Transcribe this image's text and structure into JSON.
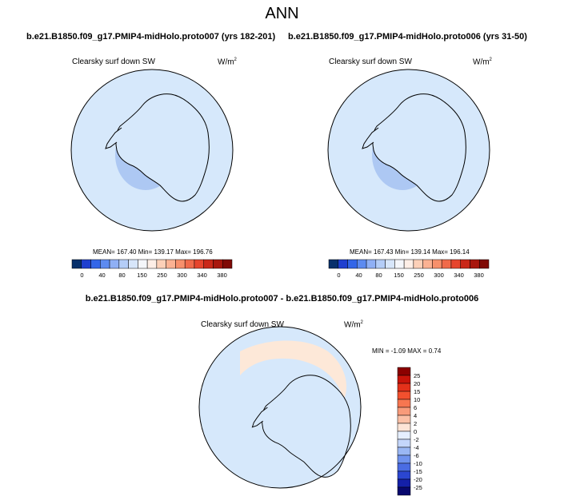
{
  "figure": {
    "title": "ANN",
    "colors": {
      "land": "#fde8d8",
      "ocean": "#d6e8fb",
      "iceshelf": "#adc8f3"
    }
  },
  "chart_data": [
    {
      "type": "heatmap",
      "title": "b.e21.B1850.f09_g17.PMIP4-midHolo.proto007 (yrs 182-201)",
      "variable": "Clearsky surf down SW",
      "units": "W/m",
      "units_power": "2",
      "stats": "MEAN= 167.40  Min= 139.17  Max= 196.76",
      "mean": 167.4,
      "min": 139.17,
      "max": 196.76,
      "colorbar_labels": [
        "0",
        "40",
        "80",
        "150",
        "250",
        "300",
        "340",
        "380"
      ],
      "colorbar_colors": [
        "#08306b",
        "#1f3fcf",
        "#3366e8",
        "#5d8bf0",
        "#8fb0f5",
        "#b4cdf7",
        "#d7e6fa",
        "#f4f6fa",
        "#fdeee6",
        "#fcd0b8",
        "#fbb293",
        "#f7906c",
        "#f06a4a",
        "#e6452d",
        "#c92819",
        "#a8170e",
        "#7f0a06"
      ],
      "projection": "south polar stereographic"
    },
    {
      "type": "heatmap",
      "title": "b.e21.B1850.f09_g17.PMIP4-midHolo.proto006 (yrs 31-50)",
      "variable": "Clearsky surf down SW",
      "units": "W/m",
      "units_power": "2",
      "stats": "MEAN= 167.43  Min= 139.14  Max= 196.14",
      "mean": 167.43,
      "min": 139.14,
      "max": 196.14,
      "colorbar_labels": [
        "0",
        "40",
        "80",
        "150",
        "250",
        "300",
        "340",
        "380"
      ],
      "colorbar_colors": [
        "#08306b",
        "#1f3fcf",
        "#3366e8",
        "#5d8bf0",
        "#8fb0f5",
        "#b4cdf7",
        "#d7e6fa",
        "#f4f6fa",
        "#fdeee6",
        "#fcd0b8",
        "#fbb293",
        "#f7906c",
        "#f06a4a",
        "#e6452d",
        "#c92819",
        "#a8170e",
        "#7f0a06"
      ],
      "projection": "south polar stereographic"
    },
    {
      "type": "heatmap",
      "title": "b.e21.B1850.f09_g17.PMIP4-midHolo.proto007 - b.e21.B1850.f09_g17.PMIP4-midHolo.proto006",
      "variable": "Clearsky surf down SW",
      "units": "W/m",
      "units_power": "2",
      "stats": "MIN =  -1.09 MAX =   0.74",
      "min": -1.09,
      "max": 0.74,
      "colorbar_labels": [
        "25",
        "20",
        "15",
        "10",
        "6",
        "4",
        "2",
        "0",
        "-2",
        "-4",
        "-6",
        "-10",
        "-15",
        "-20",
        "-25"
      ],
      "colorbar_colors": [
        "#8b0000",
        "#c8140a",
        "#e4311a",
        "#f2502e",
        "#f77650",
        "#f89b7a",
        "#fbc0a6",
        "#fde4d6",
        "#e6efff",
        "#c4d6fb",
        "#9ab7f4",
        "#6f92ee",
        "#4a6ce3",
        "#2b46d1",
        "#1420a8",
        "#08086e"
      ],
      "projection": "south polar stereographic"
    }
  ]
}
